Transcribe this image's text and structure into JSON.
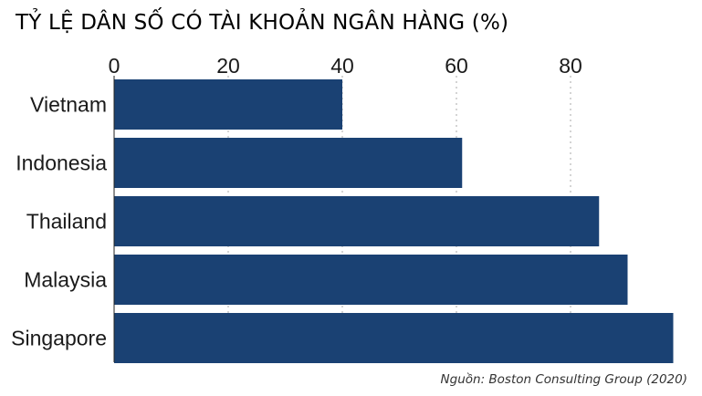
{
  "chart_data": {
    "type": "bar",
    "orientation": "horizontal",
    "title": "TỶ LỆ DÂN SỐ CÓ TÀI KHOẢN NGÂN HÀNG (%)",
    "source": "Nguồn: Boston Consulting Group (2020)",
    "categories": [
      "Vietnam",
      "Indonesia",
      "Thailand",
      "Malaysia",
      "Singapore"
    ],
    "values": [
      40,
      61,
      85,
      90,
      98
    ],
    "xlim": [
      0,
      100
    ],
    "ticks": [
      "0",
      "20",
      "40",
      "60",
      "80"
    ],
    "tick_values": [
      0,
      20,
      40,
      60,
      80
    ],
    "xaxis_position": "top",
    "grid": true,
    "grid_style": "dotted vertical",
    "bar_color": "#1a4173",
    "gridline_color": "#b8b8b8"
  }
}
